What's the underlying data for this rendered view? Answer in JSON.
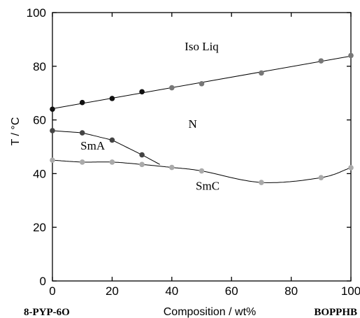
{
  "chart_data": {
    "type": "scatter",
    "xlabel": "Composition / wt%",
    "ylabel": "T / °C",
    "xlim": [
      0,
      100
    ],
    "ylim": [
      0,
      100
    ],
    "x_ticks": [
      0,
      20,
      40,
      60,
      80,
      100
    ],
    "y_ticks": [
      0,
      20,
      40,
      60,
      80,
      100
    ],
    "grid": false,
    "left_component": "8-PYP-6O",
    "right_component": "BOPPHB",
    "colors": {
      "iso_n": "#111111",
      "iso_n_right": "#777777",
      "sma": "#444444",
      "smc": "#aaaaaa"
    },
    "series": [
      {
        "key": "iso_n",
        "points": [
          [
            0,
            64
          ],
          [
            10,
            66.5
          ],
          [
            20,
            68
          ],
          [
            30,
            70.5
          ],
          [
            40,
            72
          ],
          [
            50,
            73.5
          ],
          [
            70,
            77.5
          ],
          [
            90,
            82
          ],
          [
            100,
            84
          ]
        ]
      },
      {
        "key": "sma_n",
        "points": [
          [
            0,
            56
          ],
          [
            10,
            55.2
          ],
          [
            20,
            52.5
          ],
          [
            30,
            47
          ]
        ]
      },
      {
        "key": "smc",
        "points": [
          [
            0,
            45
          ],
          [
            10,
            44.3
          ],
          [
            20,
            44.3
          ],
          [
            30,
            43.4
          ],
          [
            40,
            42.3
          ],
          [
            50,
            41
          ],
          [
            70,
            36.7
          ],
          [
            90,
            38.5
          ],
          [
            100,
            42.2
          ]
        ]
      }
    ],
    "phase_labels": [
      {
        "text": "Iso Liq",
        "x": 50,
        "y": 86
      },
      {
        "text": "N",
        "x": 47,
        "y": 57
      },
      {
        "text": "SmA",
        "x": 13.5,
        "y": 49
      },
      {
        "text": "SmC",
        "x": 52,
        "y": 34
      }
    ]
  }
}
